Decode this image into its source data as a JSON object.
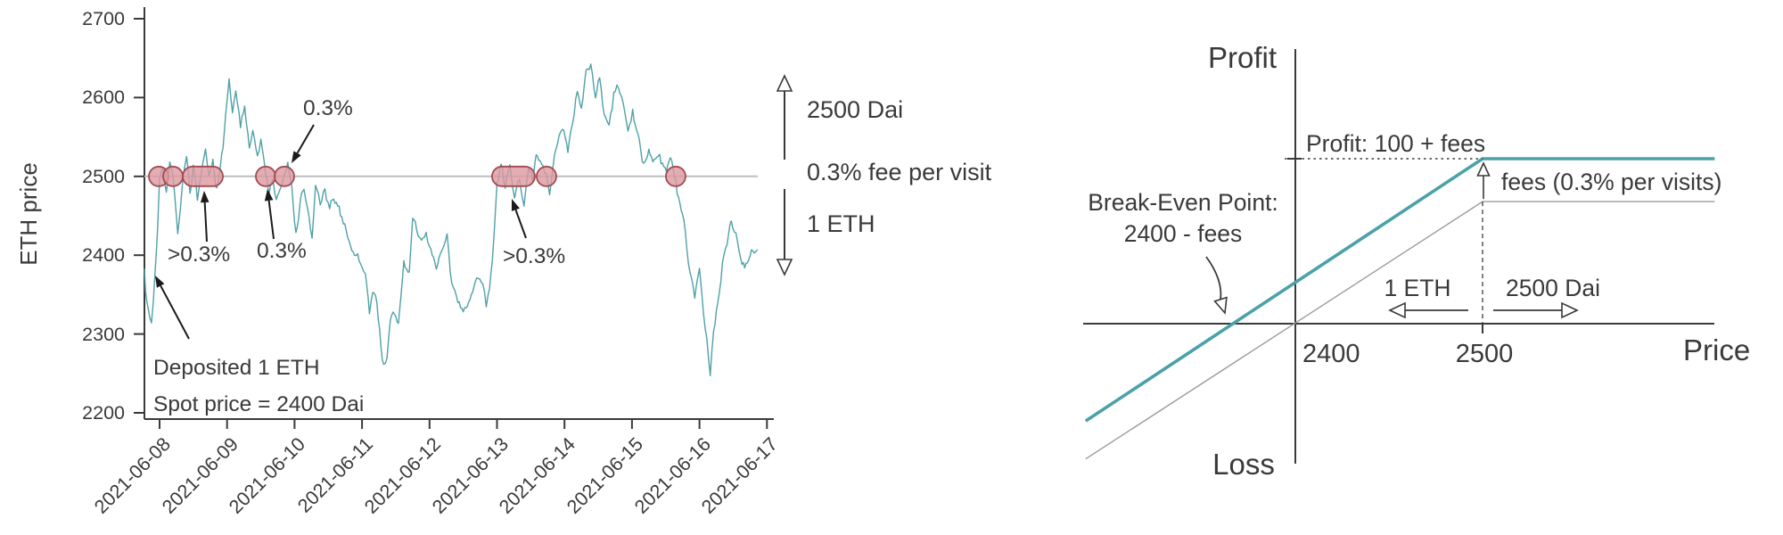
{
  "figure": {
    "background": "#ffffff"
  },
  "colors": {
    "price_line": "#4fa1a7",
    "teal_payoff": "#4aa2a8",
    "gray_payoff": "#9c9c9c",
    "reference_line": "#bdbdbd",
    "dot_fill": "#dc98a0",
    "dot_edge": "#a24a52",
    "axis": "#3a3a3a",
    "arrow": "#1a1a1a"
  },
  "chart_data": [
    {
      "type": "line",
      "title": "",
      "ylabel": "ETH price",
      "ylim": [
        2200,
        2700
      ],
      "y_ticks": [
        2700,
        2600,
        2500,
        2400,
        2300,
        2200
      ],
      "x_tick_labels": [
        "2021-06-08",
        "2021-06-09",
        "2021-06-10",
        "2021-06-11",
        "2021-06-12",
        "2021-06-13",
        "2021-06-14",
        "2021-06-15",
        "2021-06-16",
        "2021-06-17"
      ],
      "reference_line": 2500,
      "series": [
        {
          "name": "ETH price",
          "keypoints_day_price": [
            [
              -0.225,
              2383
            ],
            [
              -0.19,
              2340
            ],
            [
              -0.12,
              2312
            ],
            [
              -0.07,
              2372
            ],
            [
              -0.03,
              2436
            ],
            [
              0.0,
              2500
            ],
            [
              0.05,
              2522
            ],
            [
              0.1,
              2487
            ],
            [
              0.15,
              2526
            ],
            [
              0.2,
              2500
            ],
            [
              0.27,
              2432
            ],
            [
              0.31,
              2468
            ],
            [
              0.35,
              2502
            ],
            [
              0.4,
              2534
            ],
            [
              0.45,
              2482
            ],
            [
              0.5,
              2514
            ],
            [
              0.56,
              2473
            ],
            [
              0.62,
              2497
            ],
            [
              0.68,
              2527
            ],
            [
              0.73,
              2488
            ],
            [
              0.79,
              2514
            ],
            [
              0.85,
              2481
            ],
            [
              0.9,
              2507
            ],
            [
              0.94,
              2532
            ],
            [
              0.98,
              2574
            ],
            [
              1.03,
              2624
            ],
            [
              1.08,
              2586
            ],
            [
              1.13,
              2605
            ],
            [
              1.2,
              2559
            ],
            [
              1.26,
              2589
            ],
            [
              1.33,
              2545
            ],
            [
              1.38,
              2568
            ],
            [
              1.45,
              2530
            ],
            [
              1.5,
              2547
            ],
            [
              1.57,
              2500
            ],
            [
              1.62,
              2478
            ],
            [
              1.68,
              2492
            ],
            [
              1.73,
              2470
            ],
            [
              1.79,
              2487
            ],
            [
              1.85,
              2500
            ],
            [
              1.9,
              2512
            ],
            [
              1.96,
              2478
            ],
            [
              2.02,
              2425
            ],
            [
              2.08,
              2464
            ],
            [
              2.14,
              2486
            ],
            [
              2.21,
              2448
            ],
            [
              2.26,
              2415
            ],
            [
              2.31,
              2488
            ],
            [
              2.38,
              2465
            ],
            [
              2.45,
              2478
            ],
            [
              2.52,
              2452
            ],
            [
              2.6,
              2468
            ],
            [
              2.7,
              2445
            ],
            [
              2.81,
              2422
            ],
            [
              2.89,
              2404
            ],
            [
              2.98,
              2390
            ],
            [
              3.05,
              2377
            ],
            [
              3.11,
              2326
            ],
            [
              3.16,
              2352
            ],
            [
              3.22,
              2340
            ],
            [
              3.28,
              2290
            ],
            [
              3.32,
              2263
            ],
            [
              3.37,
              2273
            ],
            [
              3.42,
              2314
            ],
            [
              3.48,
              2322
            ],
            [
              3.54,
              2311
            ],
            [
              3.62,
              2394
            ],
            [
              3.7,
              2379
            ],
            [
              3.75,
              2445
            ],
            [
              3.81,
              2428
            ],
            [
              3.88,
              2411
            ],
            [
              3.95,
              2427
            ],
            [
              4.02,
              2406
            ],
            [
              4.1,
              2390
            ],
            [
              4.18,
              2404
            ],
            [
              4.26,
              2417
            ],
            [
              4.33,
              2358
            ],
            [
              4.4,
              2336
            ],
            [
              4.48,
              2330
            ],
            [
              4.56,
              2347
            ],
            [
              4.64,
              2356
            ],
            [
              4.72,
              2373
            ],
            [
              4.79,
              2375
            ],
            [
              4.84,
              2335
            ],
            [
              4.89,
              2361
            ],
            [
              4.93,
              2398
            ],
            [
              4.96,
              2440
            ],
            [
              5.0,
              2502
            ],
            [
              5.06,
              2519
            ],
            [
              5.12,
              2480
            ],
            [
              5.19,
              2509
            ],
            [
              5.26,
              2476
            ],
            [
              5.33,
              2499
            ],
            [
              5.4,
              2471
            ],
            [
              5.47,
              2509
            ],
            [
              5.53,
              2486
            ],
            [
              5.58,
              2524
            ],
            [
              5.66,
              2507
            ],
            [
              5.73,
              2500
            ],
            [
              5.78,
              2471
            ],
            [
              5.85,
              2519
            ],
            [
              5.92,
              2544
            ],
            [
              5.99,
              2559
            ],
            [
              6.05,
              2539
            ],
            [
              6.12,
              2579
            ],
            [
              6.19,
              2611
            ],
            [
              6.25,
              2594
            ],
            [
              6.32,
              2636
            ],
            [
              6.39,
              2646
            ],
            [
              6.46,
              2600
            ],
            [
              6.52,
              2619
            ],
            [
              6.59,
              2576
            ],
            [
              6.66,
              2561
            ],
            [
              6.73,
              2599
            ],
            [
              6.8,
              2616
            ],
            [
              6.87,
              2589
            ],
            [
              6.94,
              2566
            ],
            [
              7.01,
              2584
            ],
            [
              7.09,
              2545
            ],
            [
              7.17,
              2518
            ],
            [
              7.25,
              2531
            ],
            [
              7.33,
              2512
            ],
            [
              7.41,
              2526
            ],
            [
              7.49,
              2509
            ],
            [
              7.57,
              2521
            ],
            [
              7.65,
              2500
            ],
            [
              7.71,
              2462
            ],
            [
              7.79,
              2427
            ],
            [
              7.86,
              2381
            ],
            [
              7.93,
              2352
            ],
            [
              8.0,
              2386
            ],
            [
              8.06,
              2331
            ],
            [
              8.11,
              2292
            ],
            [
              8.16,
              2247
            ],
            [
              8.21,
              2299
            ],
            [
              8.27,
              2338
            ],
            [
              8.34,
              2384
            ],
            [
              8.41,
              2419
            ],
            [
              8.47,
              2446
            ],
            [
              8.54,
              2431
            ],
            [
              8.61,
              2401
            ],
            [
              8.69,
              2389
            ],
            [
              8.77,
              2414
            ],
            [
              8.86,
              2408
            ]
          ]
        }
      ],
      "visits_at_2500": {
        "circles_days": [
          -0.013,
          0.198,
          1.572,
          1.849,
          5.733,
          7.648
        ],
        "pills_days": [
          [
            0.343,
            0.938
          ],
          [
            4.927,
            5.561
          ]
        ]
      },
      "annotations": {
        "deposit": [
          "Deposited 1 ETH",
          "Spot price = 2400 Dai"
        ],
        "fee_labels": [
          "0.3%",
          ">0.3%",
          "0.3%",
          ">0.3%"
        ],
        "side": [
          "2500 Dai",
          "0.3% fee per visit",
          "1 ETH"
        ]
      }
    },
    {
      "type": "line",
      "title": "",
      "xlabel": "Price",
      "axis_labels": {
        "top": "Profit",
        "bottom": "Loss"
      },
      "x_ticks": [
        "2400",
        "2500"
      ],
      "series": [
        {
          "name": "payoff with fees",
          "color": "teal",
          "points_price_profit": [
            [
              2288,
              -59
            ],
            [
              2500,
              100
            ],
            [
              2624,
              100
            ]
          ]
        },
        {
          "name": "payoff without fees",
          "color": "gray",
          "points_price_profit": [
            [
              2288,
              -82
            ],
            [
              2500,
              74
            ],
            [
              2624,
              74
            ]
          ]
        }
      ],
      "annotations": {
        "profit": "Profit: 100 + fees",
        "fees": "fees (0.3% per visits)",
        "breakeven": [
          "Break-Even Point:",
          "2400 - fees"
        ],
        "one_eth": "1 ETH",
        "dai": "2500 Dai"
      }
    }
  ]
}
